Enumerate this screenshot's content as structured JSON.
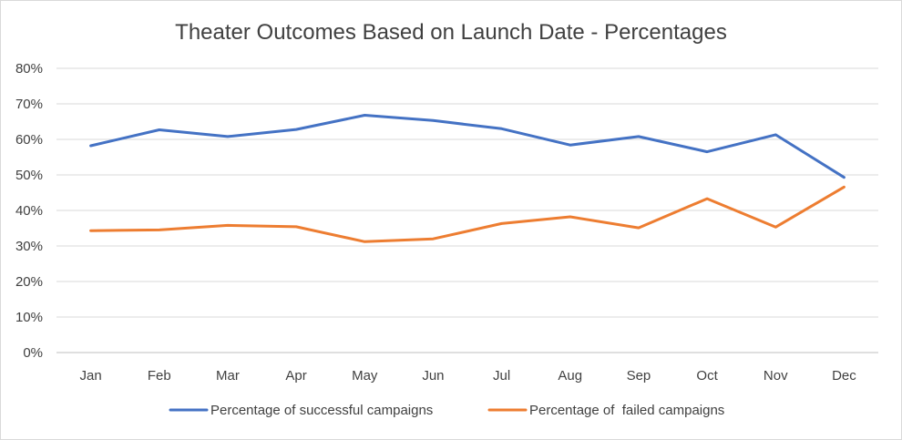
{
  "chart_data": {
    "type": "line",
    "title": "Theater Outcomes Based on Launch Date - Percentages",
    "xlabel": "",
    "ylabel": "",
    "categories": [
      "Jan",
      "Feb",
      "Mar",
      "Apr",
      "May",
      "Jun",
      "Jul",
      "Aug",
      "Sep",
      "Oct",
      "Nov",
      "Dec"
    ],
    "y_ticks": [
      "0%",
      "10%",
      "20%",
      "30%",
      "40%",
      "50%",
      "60%",
      "70%",
      "80%"
    ],
    "ylim": [
      0,
      80
    ],
    "grid": true,
    "legend_position": "bottom",
    "series": [
      {
        "name": "Percentage of successful campaigns",
        "color": "#4472c4",
        "values": [
          58.2,
          62.7,
          60.8,
          62.8,
          66.8,
          65.3,
          63.0,
          58.4,
          60.8,
          56.5,
          61.3,
          49.3
        ]
      },
      {
        "name": "Percentage of  failed campaigns",
        "color": "#ed7d31",
        "values": [
          34.3,
          34.5,
          35.8,
          35.4,
          31.2,
          32.0,
          36.3,
          38.2,
          35.1,
          43.3,
          35.3,
          46.6
        ]
      }
    ]
  }
}
